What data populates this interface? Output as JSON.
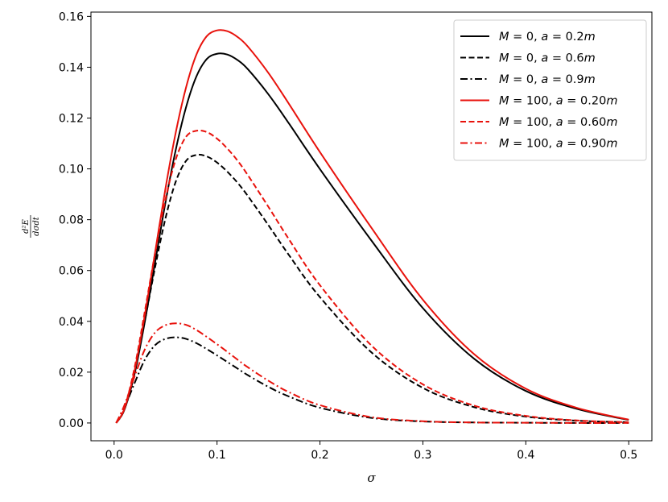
{
  "chart_data": {
    "type": "line",
    "title": "",
    "xlabel": "σ",
    "ylabel": "d²E / dσdt",
    "ylabel_parts": {
      "numerator": "d²E",
      "denominator": "dσdt"
    },
    "xlim": [
      0.0,
      0.5
    ],
    "ylim": [
      0.0,
      0.16
    ],
    "x_ticks": [
      0.0,
      0.1,
      0.2,
      0.3,
      0.4,
      0.5
    ],
    "x_tick_labels": [
      "0.0",
      "0.1",
      "0.2",
      "0.3",
      "0.4",
      "0.5"
    ],
    "y_ticks": [
      0.0,
      0.02,
      0.04,
      0.06,
      0.08,
      0.1,
      0.12,
      0.14,
      0.16
    ],
    "y_tick_labels": [
      "0.00",
      "0.02",
      "0.04",
      "0.06",
      "0.08",
      "0.10",
      "0.12",
      "0.14",
      "0.16"
    ],
    "grid": false,
    "legend_position": "top-right",
    "x": [
      0.002,
      0.01,
      0.02,
      0.03,
      0.04,
      0.05,
      0.06,
      0.07,
      0.08,
      0.09,
      0.1,
      0.11,
      0.12,
      0.13,
      0.15,
      0.17,
      0.2,
      0.25,
      0.3,
      0.35,
      0.4,
      0.45,
      0.5
    ],
    "series": [
      {
        "name": "M = 0, a = 0.2m",
        "M": "0",
        "a": "0.2",
        "color": "#000000",
        "dash": "solid",
        "values": [
          0.0,
          0.0052,
          0.0195,
          0.0402,
          0.0636,
          0.087,
          0.1077,
          0.1244,
          0.1364,
          0.1432,
          0.1453,
          0.145,
          0.1428,
          0.1392,
          0.1293,
          0.1178,
          0.0999,
          0.0718,
          0.0452,
          0.0252,
          0.0126,
          0.0055,
          0.0012
        ]
      },
      {
        "name": "M = 0, a = 0.6m",
        "M": "0",
        "a": "0.6",
        "color": "#000000",
        "dash": "dashed",
        "values": [
          0.0,
          0.0053,
          0.0201,
          0.0405,
          0.0616,
          0.0807,
          0.0951,
          0.1032,
          0.1055,
          0.1049,
          0.1025,
          0.0989,
          0.0945,
          0.0893,
          0.0778,
          0.066,
          0.0495,
          0.0278,
          0.0138,
          0.0062,
          0.0025,
          0.0009,
          0.0003
        ]
      },
      {
        "name": "M = 0, a = 0.9m",
        "M": "0",
        "a": "0.9",
        "color": "#000000",
        "dash": "dashdot",
        "values": [
          0.0,
          0.006,
          0.0158,
          0.025,
          0.0307,
          0.0331,
          0.0337,
          0.0331,
          0.0314,
          0.0291,
          0.0266,
          0.024,
          0.0214,
          0.0188,
          0.0142,
          0.0104,
          0.006,
          0.002,
          0.0006,
          0.0002,
          0.0001,
          0.0,
          0.0
        ]
      },
      {
        "name": "M = 100, a = 0.20m",
        "M": "100",
        "a": "0.20",
        "color": "#e8120c",
        "dash": "solid",
        "values": [
          0.0,
          0.0055,
          0.0208,
          0.0428,
          0.0676,
          0.0925,
          0.1145,
          0.1322,
          0.145,
          0.1522,
          0.1545,
          0.1542,
          0.1519,
          0.1481,
          0.1377,
          0.1255,
          0.1066,
          0.0768,
          0.0485,
          0.027,
          0.0135,
          0.0059,
          0.0013
        ]
      },
      {
        "name": "M = 100, a = 0.60m",
        "M": "100",
        "a": "0.60",
        "color": "#e8120c",
        "dash": "dashed",
        "values": [
          0.0,
          0.0058,
          0.022,
          0.0443,
          0.0673,
          0.0882,
          0.1039,
          0.1127,
          0.115,
          0.1145,
          0.1119,
          0.108,
          0.1032,
          0.0975,
          0.085,
          0.0722,
          0.0542,
          0.0305,
          0.0152,
          0.0068,
          0.0028,
          0.001,
          0.0003
        ]
      },
      {
        "name": "M = 100, a = 0.90m",
        "M": "100",
        "a": "0.90",
        "color": "#e8120c",
        "dash": "dashdot",
        "values": [
          0.0,
          0.007,
          0.0184,
          0.0291,
          0.0357,
          0.0385,
          0.0392,
          0.0386,
          0.0366,
          0.0339,
          0.031,
          0.028,
          0.0249,
          0.0219,
          0.0166,
          0.0121,
          0.007,
          0.0023,
          0.0007,
          0.0002,
          0.0001,
          0.0,
          0.0
        ]
      }
    ]
  }
}
